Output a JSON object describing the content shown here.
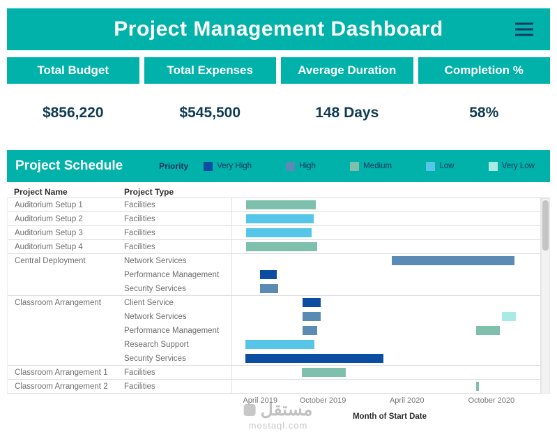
{
  "header": {
    "title": "Project Management Dashboard"
  },
  "kpis": [
    {
      "label": "Total Budget",
      "value": "$856,220"
    },
    {
      "label": "Total Expenses",
      "value": "$545,500"
    },
    {
      "label": "Average Duration",
      "value": "148 Days"
    },
    {
      "label": "Completion %",
      "value": "58%"
    }
  ],
  "schedule": {
    "title": "Project Schedule",
    "priority_label": "Priority",
    "legend": [
      {
        "label": "Very High",
        "color": "#0b4da1"
      },
      {
        "label": "High",
        "color": "#5a8bb5"
      },
      {
        "label": "Medium",
        "color": "#7fc0ad"
      },
      {
        "label": "Low",
        "color": "#55c6e8"
      },
      {
        "label": "Very Low",
        "color": "#a8ebe4"
      }
    ],
    "columns": [
      "Project Name",
      "Project Type"
    ]
  },
  "colors": {
    "accent_teal": "#00b2a9",
    "kpi_value_text": "#103c53",
    "menu_icon": "#123a5e"
  },
  "chart_data": {
    "type": "gantt",
    "x_axis": {
      "label": "Month of Start Date",
      "ticks": [
        {
          "label": "April 2019",
          "pos": 7.2
        },
        {
          "label": "October 2019",
          "pos": 27.9
        },
        {
          "label": "April 2020",
          "pos": 55.7
        },
        {
          "label": "October 2020",
          "pos": 83.6
        }
      ]
    },
    "rows": [
      {
        "project": "Auditorium Setup 1",
        "type": "Facilities",
        "sep": true,
        "bars": [
          {
            "priority": "Medium",
            "start": 4.6,
            "end": 27.2
          }
        ]
      },
      {
        "project": "Auditorium Setup 2",
        "type": "Facilities",
        "sep": true,
        "bars": [
          {
            "priority": "Low",
            "start": 4.6,
            "end": 26.5
          }
        ]
      },
      {
        "project": "Auditorium Setup 3",
        "type": "Facilities",
        "sep": true,
        "bars": [
          {
            "priority": "Low",
            "start": 4.6,
            "end": 25.8
          }
        ]
      },
      {
        "project": "Auditorium Setup 4",
        "type": "Facilities",
        "sep": true,
        "bars": [
          {
            "priority": "Medium",
            "start": 4.6,
            "end": 27.7
          }
        ]
      },
      {
        "project": "Central Deployment",
        "type": "Network Services",
        "sep": false,
        "bars": [
          {
            "priority": "High",
            "start": 51.7,
            "end": 91.7
          }
        ]
      },
      {
        "project": "",
        "type": "Performance Management",
        "sep": false,
        "bars": [
          {
            "priority": "Very High",
            "start": 9.0,
            "end": 14.5
          }
        ]
      },
      {
        "project": "",
        "type": "Security Services",
        "sep": true,
        "bars": [
          {
            "priority": "High",
            "start": 9.0,
            "end": 15.0
          }
        ]
      },
      {
        "project": "Classroom Arrangement",
        "type": "Client Service",
        "sep": false,
        "bars": [
          {
            "priority": "Very High",
            "start": 22.9,
            "end": 28.7
          }
        ]
      },
      {
        "project": "",
        "type": "Network Services",
        "sep": false,
        "bars": [
          {
            "priority": "High",
            "start": 22.9,
            "end": 28.7
          },
          {
            "priority": "Very Low",
            "start": 87.5,
            "end": 92.1
          }
        ]
      },
      {
        "project": "",
        "type": "Performance Management",
        "sep": false,
        "bars": [
          {
            "priority": "High",
            "start": 22.9,
            "end": 27.5
          },
          {
            "priority": "Medium",
            "start": 79.2,
            "end": 86.8
          }
        ]
      },
      {
        "project": "",
        "type": "Research Support",
        "sep": false,
        "bars": [
          {
            "priority": "Low",
            "start": 4.2,
            "end": 26.6
          }
        ]
      },
      {
        "project": "",
        "type": "Security Services",
        "sep": true,
        "bars": [
          {
            "priority": "Very High",
            "start": 4.2,
            "end": 49.2
          }
        ]
      },
      {
        "project": "Classroom Arrangement 1",
        "type": "Facilities",
        "sep": true,
        "bars": [
          {
            "priority": "Medium",
            "start": 22.6,
            "end": 36.9
          }
        ]
      },
      {
        "project": "Classroom Arrangement 2",
        "type": "Facilities",
        "sep": true,
        "bars": [
          {
            "priority": "Medium",
            "start": 79.2,
            "end": 80.2
          }
        ]
      }
    ]
  },
  "watermark": {
    "line1": "مستقل",
    "line2": "mostaql.com"
  }
}
